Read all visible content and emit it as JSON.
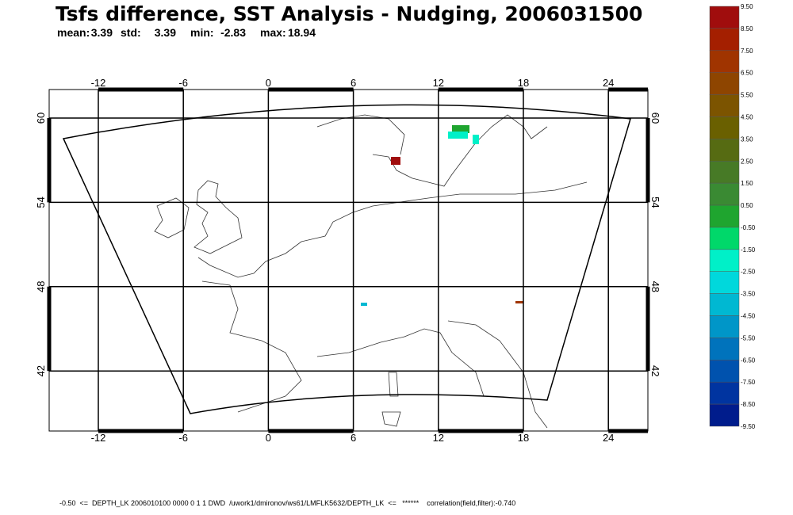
{
  "title": "Tsfs difference, SST Analysis - Nudging, 2006031500",
  "stats": [
    {
      "label": "mean:",
      "value": "3.39"
    },
    {
      "label": "std:",
      "value": "3.39"
    },
    {
      "label": "min:",
      "value": "-2.83"
    },
    {
      "label": "max:",
      "value": "18.94"
    }
  ],
  "map": {
    "lon_ticks": [
      "-12",
      "-6",
      "0",
      "6",
      "12",
      "18",
      "24"
    ],
    "lat_ticks": [
      "60",
      "54",
      "48",
      "42"
    ]
  },
  "colorbar": {
    "labels": [
      "9.50",
      "8.50",
      "7.50",
      "6.50",
      "5.50",
      "4.50",
      "3.50",
      "2.50",
      "1.50",
      "0.50",
      "-0.50",
      "-1.50",
      "-2.50",
      "-3.50",
      "-4.50",
      "-5.50",
      "-6.50",
      "-7.50",
      "-8.50",
      "-9.50"
    ],
    "colors": [
      "#a00d0d",
      "#a41f00",
      "#a03400",
      "#8e4500",
      "#7c5400",
      "#6a6000",
      "#566b12",
      "#477a26",
      "#3a8a33",
      "#1fa52f",
      "#00d86a",
      "#00f0c8",
      "#00d8dc",
      "#00b8d2",
      "#0096c8",
      "#0073bc",
      "#0052ae",
      "#0034a0",
      "#001c8c"
    ]
  },
  "footer": "-0.50  <=  DEPTH_LK 2006010100 0000 0 1 1 DWD  /uwork1/dmironov/ws61/LMFLK5632/DEPTH_LK  <=   ******    correlation(field,filter):-0.740"
}
